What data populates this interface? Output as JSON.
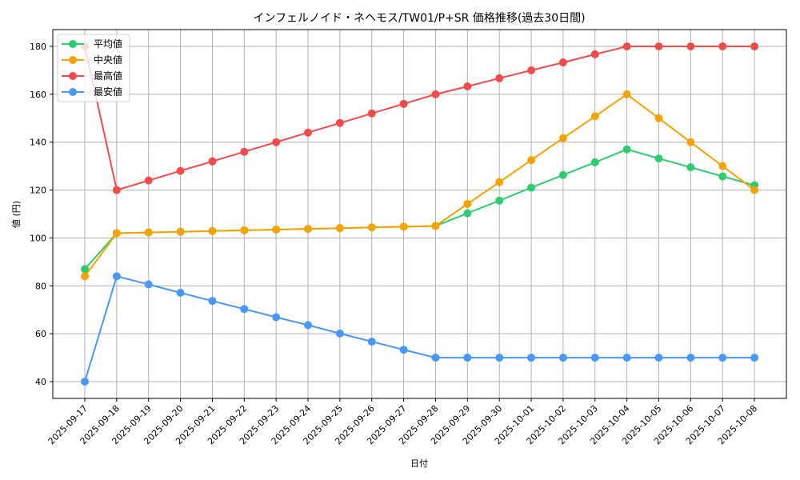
{
  "chart_data": {
    "type": "line",
    "title": "インフェルノイド・ネヘモス/TW01/P+SR 価格推移(過去30日間)",
    "xlabel": "日付",
    "ylabel": "値 (円)",
    "ylim": [
      33,
      187
    ],
    "yticks": [
      40,
      60,
      80,
      100,
      120,
      140,
      160,
      180
    ],
    "grid": true,
    "legend_position": "upper left",
    "x": [
      "2025-09-17",
      "2025-09-18",
      "2025-09-19",
      "2025-09-20",
      "2025-09-21",
      "2025-09-22",
      "2025-09-23",
      "2025-09-24",
      "2025-09-25",
      "2025-09-26",
      "2025-09-27",
      "2025-09-28",
      "2025-09-29",
      "2025-09-30",
      "2025-10-01",
      "2025-10-02",
      "2025-10-03",
      "2025-10-04",
      "2025-10-05",
      "2025-10-06",
      "2025-10-07",
      "2025-10-08"
    ],
    "series": [
      {
        "name": "平均値",
        "color": "#2ecc71",
        "values": [
          87,
          102,
          102.3,
          102.6,
          102.9,
          103.2,
          103.5,
          103.8,
          104.1,
          104.4,
          104.7,
          105,
          110.3,
          115.6,
          121,
          126.3,
          131.6,
          137,
          133.2,
          129.5,
          125.7,
          122
        ]
      },
      {
        "name": "中央値",
        "color": "#f5a300",
        "values": [
          84,
          102,
          102.3,
          102.6,
          102.9,
          103.2,
          103.5,
          103.8,
          104.1,
          104.4,
          104.7,
          105,
          114.2,
          123.3,
          132.5,
          141.7,
          150.8,
          160,
          150,
          140,
          130,
          120
        ]
      },
      {
        "name": "最高値",
        "color": "#f24b4b",
        "values": [
          180,
          120,
          124,
          128,
          132,
          136,
          140,
          144,
          148,
          152,
          156,
          160,
          163.3,
          166.7,
          170,
          173.3,
          176.7,
          180,
          180,
          180,
          180,
          180
        ]
      },
      {
        "name": "最安値",
        "color": "#4a98f5",
        "values": [
          40,
          84,
          80.6,
          77.1,
          73.7,
          70.3,
          66.9,
          63.6,
          60.1,
          56.7,
          53.3,
          50,
          50,
          50,
          50,
          50,
          50,
          50,
          50,
          50,
          50,
          50
        ]
      }
    ]
  }
}
